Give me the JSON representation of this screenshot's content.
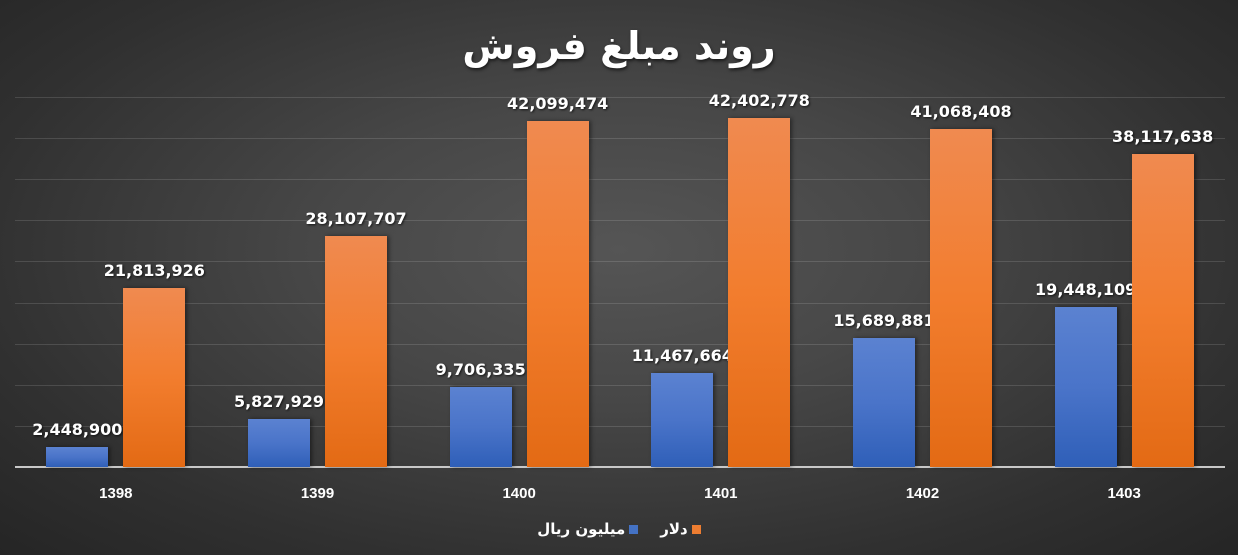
{
  "chart_data": {
    "type": "bar",
    "title": "روند مبلغ فروش",
    "xlabel": "",
    "ylabel": "",
    "categories": [
      "1398",
      "1399",
      "1400",
      "1401",
      "1402",
      "1403"
    ],
    "series": [
      {
        "name": "میلیون ریال",
        "color": "#4472C4",
        "values": [
          2448900,
          5827929,
          9706335,
          11467664,
          15689881,
          19448109
        ],
        "labels": [
          "2,448,900",
          "5,827,929",
          "9,706,335",
          "11,467,664",
          "15,689,881",
          "19,448,109"
        ]
      },
      {
        "name": "دلار",
        "color": "#ED7D31",
        "values": [
          21813926,
          28107707,
          42099474,
          42402778,
          41068408,
          38117638
        ],
        "labels": [
          "21,813,926",
          "28,107,707",
          "42,099,474",
          "42,402,778",
          "41,068,408",
          "38,117,638"
        ]
      }
    ],
    "ylim": [
      0,
      45000000
    ],
    "grid": true,
    "gridlines": 9,
    "y_axis_visible": false,
    "data_labels": true,
    "legend_position": "bottom"
  },
  "legend": {
    "items": [
      {
        "label": "دلار",
        "color": "#ED7D31"
      },
      {
        "label": "میلیون ریال",
        "color": "#4472C4"
      }
    ]
  }
}
